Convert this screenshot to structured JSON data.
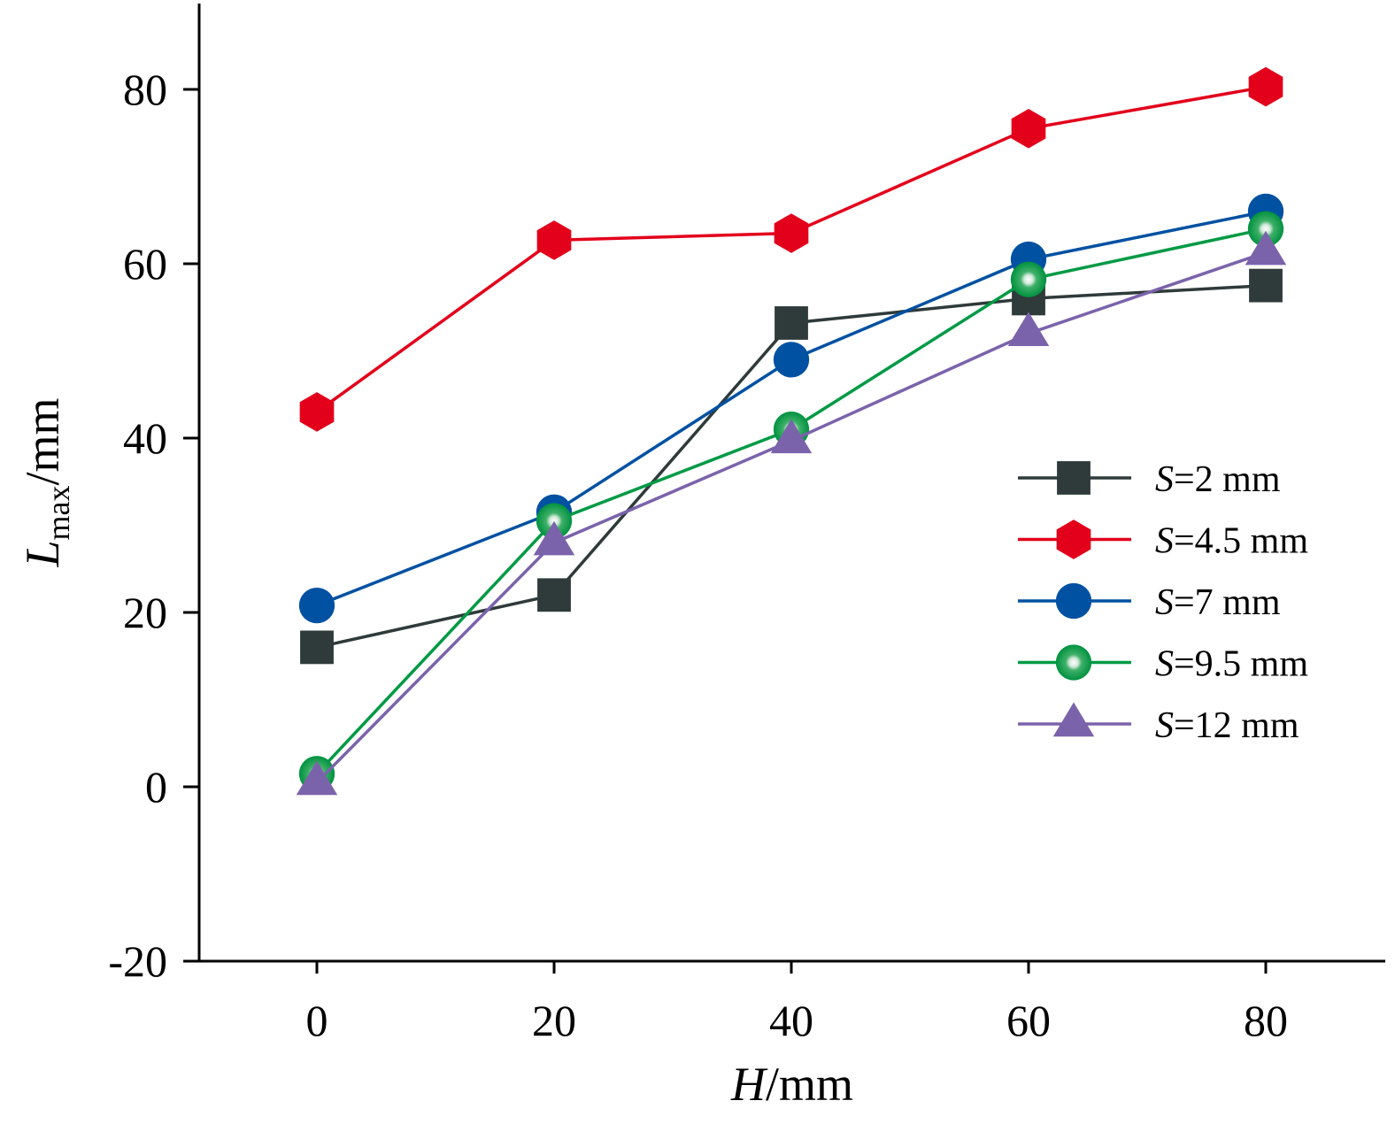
{
  "chart_data": {
    "type": "line",
    "x": [
      0,
      20,
      40,
      60,
      80
    ],
    "xlim": [
      -10,
      90
    ],
    "ylim": [
      -20,
      90
    ],
    "xticks": [
      "0",
      "20",
      "40",
      "60",
      "80"
    ],
    "yticks": [
      "-20",
      "0",
      "20",
      "40",
      "60",
      "80"
    ],
    "xlabel": {
      "var": "H",
      "unit": "/mm"
    },
    "ylabel": {
      "var": "L",
      "sub": "max",
      "unit": "/mm"
    },
    "legend_position": "right",
    "grid": false,
    "series": [
      {
        "var": "S",
        "rest": "=2 mm",
        "color": "#2f3a3a",
        "marker": "square",
        "values": [
          16,
          22,
          53.2,
          56,
          57.5
        ]
      },
      {
        "var": "S",
        "rest": "=4.5 mm",
        "color": "#e3001b",
        "marker": "hexagon",
        "values": [
          43,
          62.7,
          63.5,
          75.5,
          80.3
        ]
      },
      {
        "var": "S",
        "rest": "=7 mm",
        "color": "#0051a2",
        "marker": "circle",
        "values": [
          20.8,
          31.5,
          49,
          60.5,
          66
        ]
      },
      {
        "var": "S",
        "rest": "=9.5 mm",
        "color": "#009a44",
        "marker": "sphere",
        "values": [
          1.5,
          30.5,
          41,
          58.2,
          64
        ]
      },
      {
        "var": "S",
        "rest": "=12 mm",
        "color": "#7b63ab",
        "marker": "triangle",
        "values": [
          0.5,
          28,
          39.7,
          52,
          61.3
        ]
      }
    ]
  }
}
